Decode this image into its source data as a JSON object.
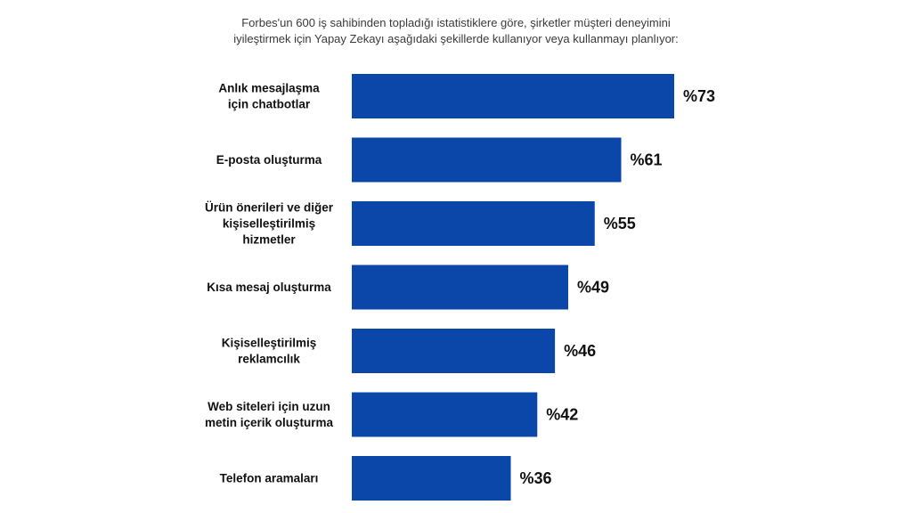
{
  "chart_data": {
    "type": "bar",
    "orientation": "horizontal",
    "title_lines": [
      "Forbes'un 600 iş sahibinden topladığı istatistiklere göre, şirketler müşteri deneyimini",
      "iyileştirmek için Yapay Zekayı aşağıdaki şekillerde kullanıyor veya kullanmayı planlıyor:"
    ],
    "categories": [
      [
        "Anlık mesajlaşma",
        "için chatbotlar"
      ],
      [
        "E-posta oluşturma"
      ],
      [
        "Ürün önerileri ve diğer",
        "kişiselleştirilmiş",
        "hizmetler"
      ],
      [
        "Kısa mesaj oluşturma"
      ],
      [
        "Kişiselleştirilmiş",
        "reklamcılık"
      ],
      [
        "Web siteleri için uzun",
        "metin içerik oluşturma"
      ],
      [
        "Telefon aramaları"
      ]
    ],
    "values": [
      73,
      61,
      55,
      49,
      46,
      42,
      36
    ],
    "value_labels": [
      "%73",
      "%61",
      "%55",
      "%49",
      "%46",
      "%42",
      "%36"
    ],
    "value_unit": "%",
    "bar_color": "#0b47a8",
    "grid": false,
    "legend": "none"
  }
}
